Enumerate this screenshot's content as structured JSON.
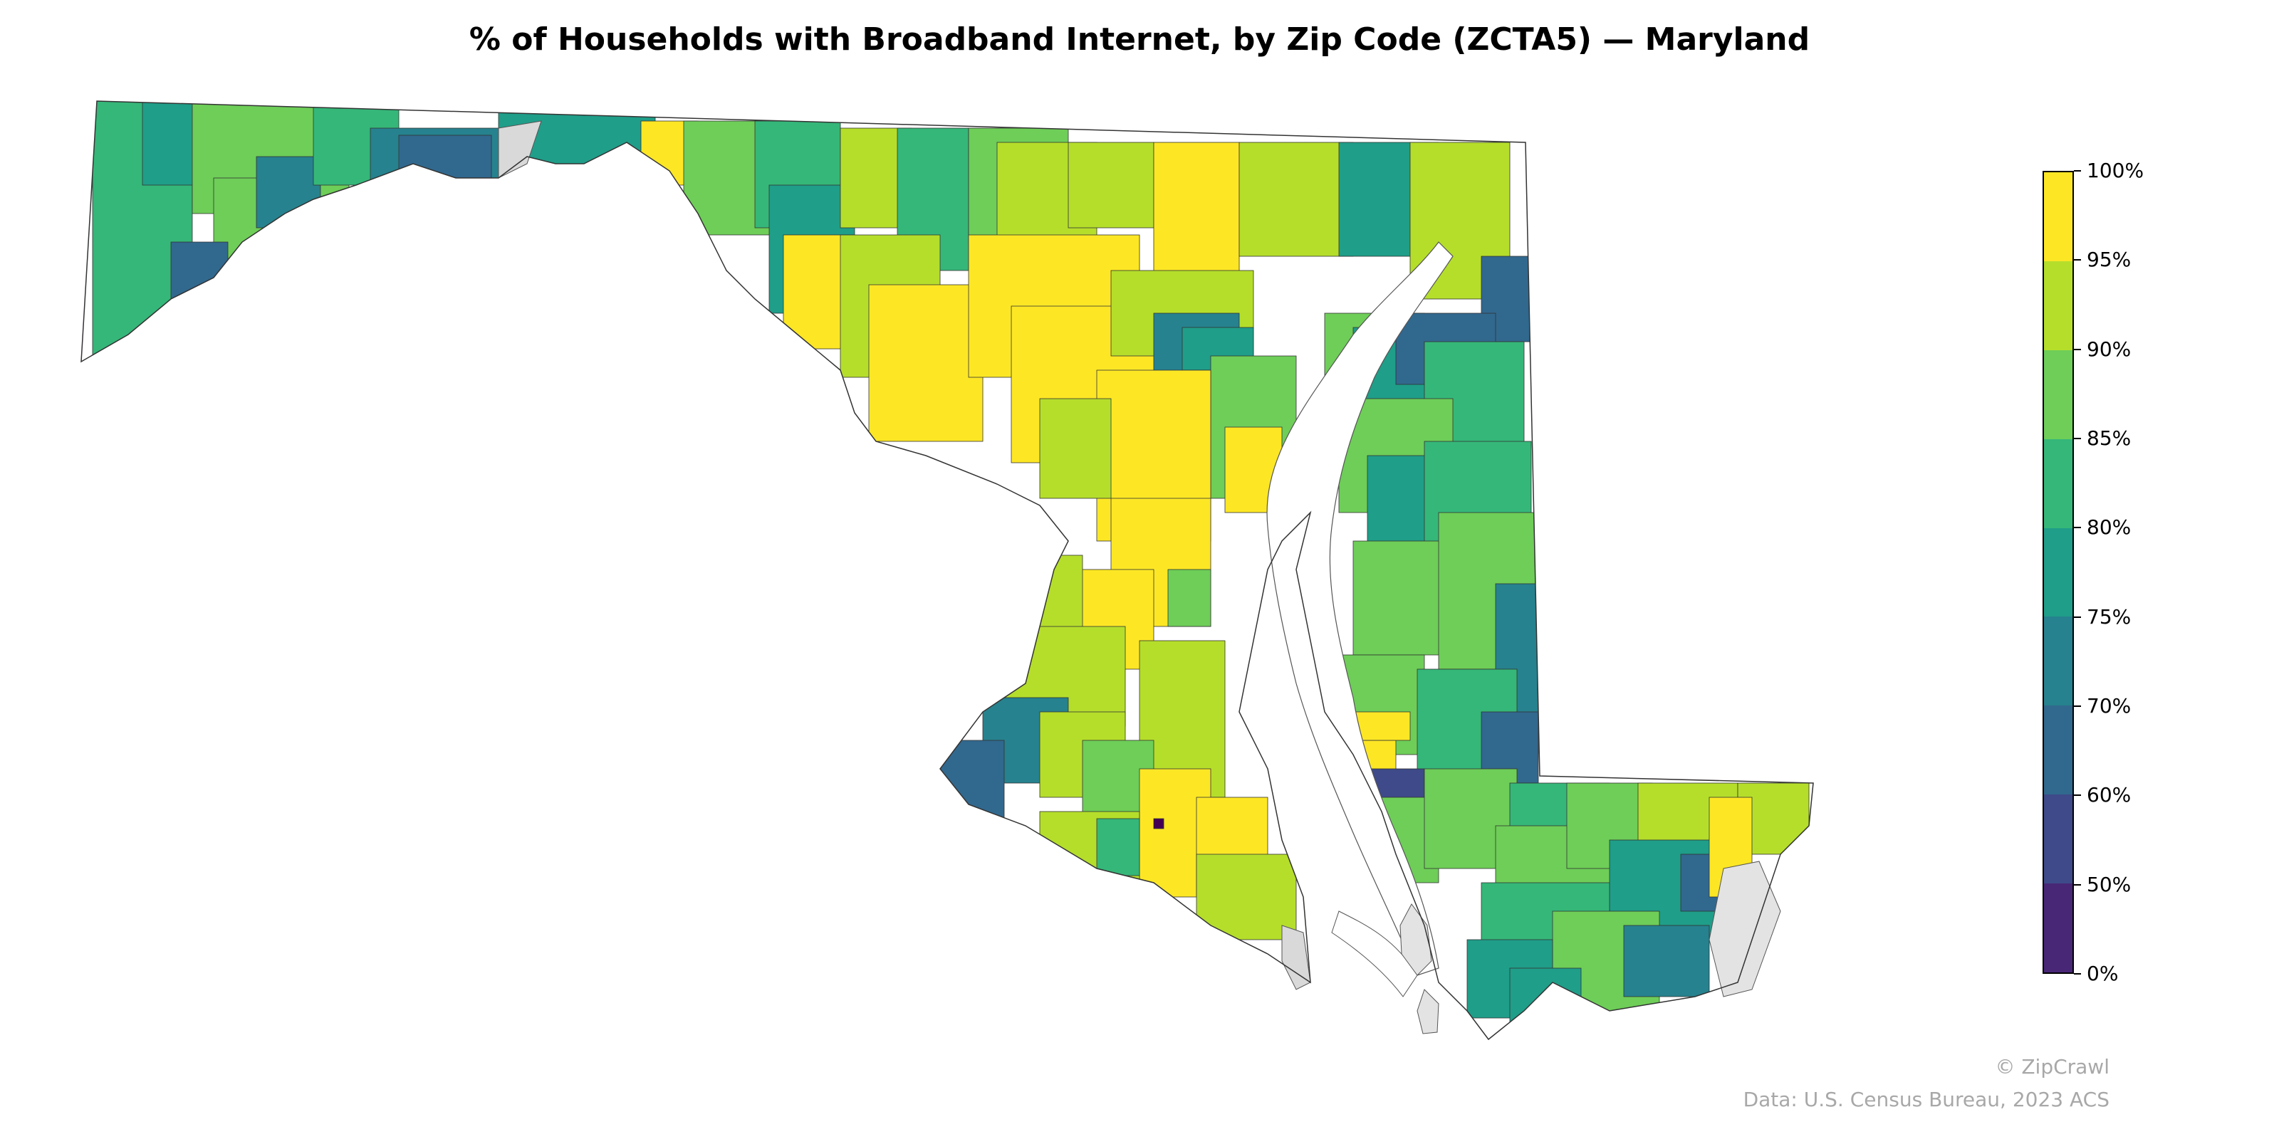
{
  "map": {
    "title": "% of Households with Broadband Internet, by Zip Code (ZCTA5) — Maryland",
    "colorbar": {
      "tick_labels": [
        "0%",
        "50%",
        "60%",
        "70%",
        "75%",
        "80%",
        "85%",
        "90%",
        "95%",
        "100%"
      ],
      "colors": [
        "#440154",
        "#482777",
        "#3e4a89",
        "#31688e",
        "#26828e",
        "#1f9e89",
        "#35b779",
        "#6ece58",
        "#b5de2b",
        "#fde725"
      ]
    },
    "no_data_color": "#d9d9d9",
    "credit": "© ZipCrawl",
    "source": "Data: U.S. Census Bureau, 2023 ACS"
  }
}
